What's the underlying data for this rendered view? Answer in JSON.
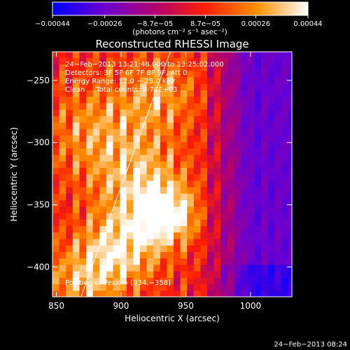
{
  "colorbar": {
    "ticks": [
      {
        "value": -0.00044,
        "label": "−0.00044"
      },
      {
        "value": -0.00026,
        "label": "−0.00026"
      },
      {
        "value": -8.7e-05,
        "label": "−8.7e−05"
      },
      {
        "value": 8.7e-05,
        "label": "8.7e−05"
      },
      {
        "value": 0.00026,
        "label": "0.00026"
      },
      {
        "value": 0.00044,
        "label": "0.00044"
      }
    ],
    "range": [
      -0.00044,
      0.00044
    ],
    "unit_label": "(photons cm⁻² s⁻¹ asec⁻²)",
    "colors": [
      "#0000ff",
      "#6a00d0",
      "#b00070",
      "#ff2000",
      "#ff9000",
      "#ffffff"
    ]
  },
  "chart_data": {
    "type": "heatmap",
    "title": "Reconstructed RHESSI Image",
    "xlabel": "Heliocentric X (arcsec)",
    "ylabel": "Heliocentric Y (arcsec)",
    "xlim": [
      847,
      1032
    ],
    "ylim": [
      -424,
      -227
    ],
    "xticks": [
      850,
      900,
      950,
      1000
    ],
    "yticks": [
      -250,
      -300,
      -350,
      -400
    ],
    "annotation_lines": [
      "24−Feb−2013 13:21:48.000 to 13:25:02.000",
      "Detectors: 3F 5F 6F 7F 8F 9F, Att 0",
      "Energy Range: 12.0 − 25.0 keV",
      "Clean     Total counts: 9.74E+03"
    ],
    "peak_label": "Position of Peak = [934,−358]",
    "peak": [
      934,
      -358
    ],
    "limb_line": [
      [
        869,
        -424
      ],
      [
        938,
        -227
      ]
    ],
    "sources": [
      {
        "x": 934,
        "y": -358,
        "amp": 1.0,
        "sigma": 16
      },
      {
        "x": 900,
        "y": -385,
        "amp": 0.7,
        "sigma": 22
      },
      {
        "x": 915,
        "y": -330,
        "amp": 0.55,
        "sigma": 25
      },
      {
        "x": 880,
        "y": -290,
        "amp": 0.45,
        "sigma": 28
      },
      {
        "x": 930,
        "y": -260,
        "amp": 0.45,
        "sigma": 22
      },
      {
        "x": 870,
        "y": -410,
        "amp": 0.5,
        "sigma": 20
      }
    ],
    "background_gradient": {
      "x_start": 960,
      "x_end": 1000,
      "low_value": -0.6
    }
  },
  "timestamp": "24−Feb−2013 08:24"
}
